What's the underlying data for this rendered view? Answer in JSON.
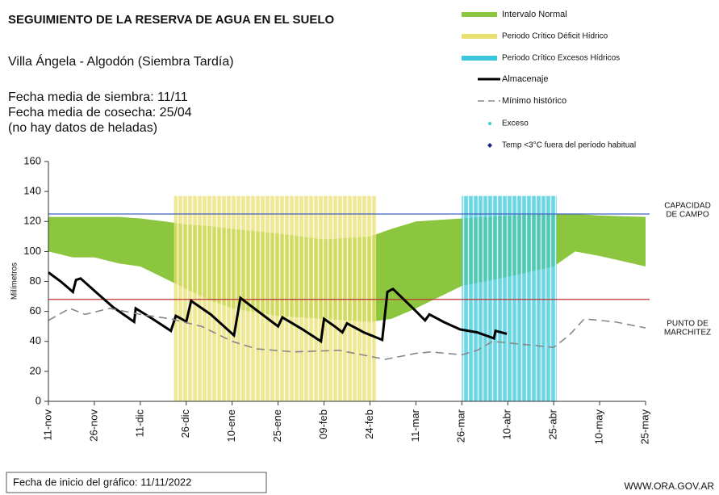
{
  "chart_data": {
    "type": "line",
    "title": "SEGUIMIENTO DE LA RESERVA DE AGUA EN EL SUELO",
    "subtitle": "Villa Ángela - Algodón (Siembra Tardía)",
    "info": [
      "Fecha media de siembra: 11/11",
      "Fecha media de cosecha: 25/04",
      "(no hay datos de heladas)"
    ],
    "y_label": "Milímetros",
    "ylim": [
      0,
      160
    ],
    "yticks": [
      0,
      20,
      40,
      60,
      80,
      100,
      120,
      140,
      160
    ],
    "xlim": [
      0,
      195
    ],
    "xticks": [
      {
        "value": 0,
        "label": "11-nov"
      },
      {
        "value": 15,
        "label": "26-nov"
      },
      {
        "value": 30,
        "label": "11-dic"
      },
      {
        "value": 45,
        "label": "26-dic"
      },
      {
        "value": 60,
        "label": "10-ene"
      },
      {
        "value": 75,
        "label": "25-ene"
      },
      {
        "value": 90,
        "label": "09-feb"
      },
      {
        "value": 105,
        "label": "24-feb"
      },
      {
        "value": 120,
        "label": "11-mar"
      },
      {
        "value": 135,
        "label": "26-mar"
      },
      {
        "value": 150,
        "label": "10-abr"
      },
      {
        "value": 165,
        "label": "25-abr"
      },
      {
        "value": 180,
        "label": "10-may"
      },
      {
        "value": 195,
        "label": "25-may"
      }
    ],
    "band": {
      "name": "Intervalo Normal",
      "color": "#8cc63f",
      "x": [
        0,
        8,
        15,
        23,
        30,
        38,
        45,
        52,
        60,
        75,
        90,
        105,
        112,
        120,
        135,
        150,
        165,
        172,
        180,
        195
      ],
      "upper": [
        123,
        123,
        123,
        123,
        122,
        120,
        118,
        117,
        115,
        112,
        108,
        110,
        115,
        120,
        122,
        124,
        125,
        125,
        124,
        123
      ],
      "lower": [
        100,
        96,
        96,
        92,
        90,
        82,
        75,
        68,
        62,
        57,
        55,
        53,
        55,
        62,
        77,
        83,
        90,
        100,
        97,
        90
      ]
    },
    "periods": [
      {
        "name": "Periodo Crítico Déficit Hídrico",
        "color": "#e8e070",
        "start": 41,
        "end": 107,
        "top": 137
      },
      {
        "name": "Periodo Crítico Excesos Hídricos",
        "color": "#3cc8dc",
        "start": 135,
        "end": 166,
        "top": 137
      }
    ],
    "series": [
      {
        "name": "Almacenaje",
        "color": "#000000",
        "x": [
          0,
          4,
          8,
          9,
          10.5,
          16,
          21,
          28,
          28.5,
          34,
          40,
          41.6,
          43.5,
          45,
          46.6,
          53,
          60.6,
          62.7,
          68.5,
          75,
          76.4,
          83,
          89,
          90,
          93.5,
          96,
          97.5,
          103,
          109,
          110.7,
          112.5,
          118.6,
          123,
          124.4,
          129,
          134.4,
          140,
          145.5,
          146,
          149.7
        ],
        "values": [
          86,
          80,
          73,
          81,
          82,
          72,
          63,
          53,
          62,
          55,
          47,
          57,
          55,
          53,
          67,
          58,
          44,
          69,
          60,
          50,
          56,
          48,
          40,
          55,
          50,
          46,
          52,
          46,
          41,
          73,
          75,
          63,
          54,
          58,
          53,
          48,
          46,
          42,
          47,
          45
        ]
      },
      {
        "name": "Mínimo histórico",
        "color": "#888888",
        "x": [
          0,
          7,
          12,
          20,
          30,
          40,
          50,
          60,
          68,
          80,
          95,
          105,
          110,
          120,
          125,
          135,
          140,
          145,
          155,
          165,
          170,
          175,
          185,
          195
        ],
        "values": [
          54,
          62,
          58,
          62,
          58,
          55,
          50,
          40,
          35,
          33,
          34,
          30,
          28,
          32,
          33,
          31,
          34,
          40,
          38,
          36,
          44,
          55,
          53,
          49
        ]
      }
    ],
    "reference_lines": [
      {
        "value": 125,
        "color": "#4060c0",
        "label": [
          "CAPACIDAD",
          "DE CAMPO"
        ]
      },
      {
        "value": 68,
        "color": "#c03030",
        "label": [
          "PUNTO  DE",
          "MARCHITEZ"
        ]
      }
    ],
    "legend_extra": [
      {
        "name": "Exceso",
        "color": "#3cc8dc"
      },
      {
        "name": "Temp <3°C fuera del período habitual",
        "color": "#1a237e"
      }
    ],
    "footer": "Fecha de inicio del gráfico:  11/11/2022",
    "source": "WWW.ORA.GOV.AR"
  }
}
